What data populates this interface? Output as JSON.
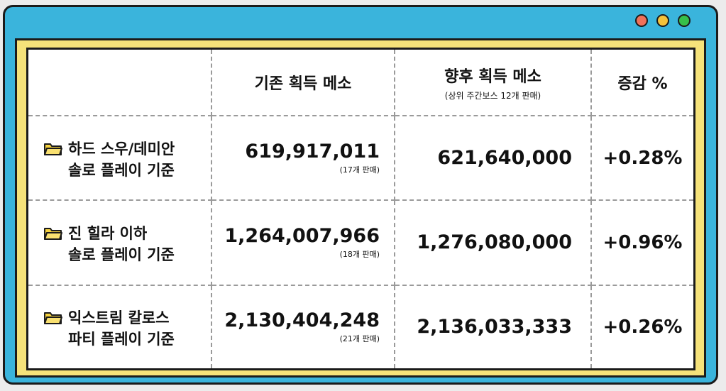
{
  "window": {
    "dots": [
      "red",
      "yellow",
      "green"
    ]
  },
  "table": {
    "headers": {
      "before": "기존 획득 메소",
      "after": "향후 획득 메소",
      "after_note": "(상위 주간보스 12개 판매)",
      "change": "증감 %"
    },
    "rows": [
      {
        "label_line1": "하드 스우/데미안",
        "label_line2": "솔로 플레이 기준",
        "before": "619,917,011",
        "before_note": "(17개 판매)",
        "after": "621,640,000",
        "change": "+0.28%"
      },
      {
        "label_line1": "진 힐라 이하",
        "label_line2": "솔로 플레이 기준",
        "before": "1,264,007,966",
        "before_note": "(18개 판매)",
        "after": "1,276,080,000",
        "change": "+0.96%"
      },
      {
        "label_line1": "익스트림 칼로스",
        "label_line2": "파티 플레이 기준",
        "before": "2,130,404,248",
        "before_note": "(21개 판매)",
        "after": "2,136,033,333",
        "change": "+0.26%"
      }
    ]
  },
  "colors": {
    "window": "#3ab4dc",
    "frame": "#f5e27a",
    "folder": "#f6d23e"
  },
  "icons": {
    "row_icon": "folder-icon"
  }
}
